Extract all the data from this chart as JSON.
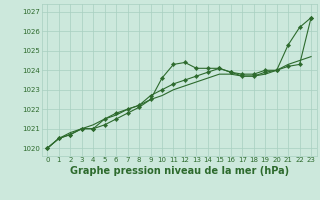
{
  "xlabel": "Graphe pression niveau de la mer (hPa)",
  "x": [
    0,
    1,
    2,
    3,
    4,
    5,
    6,
    7,
    8,
    9,
    10,
    11,
    12,
    13,
    14,
    15,
    16,
    17,
    18,
    19,
    20,
    21,
    22,
    23
  ],
  "line1": [
    1020.0,
    1020.5,
    1020.7,
    1021.0,
    1021.0,
    1021.2,
    1021.5,
    1021.8,
    1022.1,
    1022.5,
    1023.6,
    1024.3,
    1024.4,
    1024.1,
    1024.1,
    1024.1,
    1023.9,
    1023.8,
    1023.8,
    1024.0,
    1024.0,
    1025.3,
    1026.2,
    1026.7
  ],
  "line2": [
    1020.0,
    1020.5,
    1020.7,
    1021.0,
    1021.0,
    1021.5,
    1021.8,
    1022.0,
    1022.2,
    1022.7,
    1023.0,
    1023.3,
    1023.5,
    1023.7,
    1023.9,
    1024.1,
    1023.9,
    1023.7,
    1023.7,
    1023.9,
    1024.0,
    1024.2,
    1024.3,
    1026.7
  ],
  "line3": [
    1020.0,
    1020.5,
    1020.8,
    1021.0,
    1021.2,
    1021.5,
    1021.7,
    1022.0,
    1022.2,
    1022.5,
    1022.7,
    1023.0,
    1023.2,
    1023.4,
    1023.6,
    1023.8,
    1023.8,
    1023.7,
    1023.7,
    1023.8,
    1024.0,
    1024.3,
    1024.5,
    1024.7
  ],
  "line_color": "#2d6a2d",
  "marker": "D",
  "marker_size": 2.2,
  "bg_color": "#cce8dc",
  "grid_color": "#a8cfc0",
  "ylim": [
    1019.6,
    1027.4
  ],
  "yticks": [
    1020,
    1021,
    1022,
    1023,
    1024,
    1025,
    1026,
    1027
  ],
  "xticks": [
    0,
    1,
    2,
    3,
    4,
    5,
    6,
    7,
    8,
    9,
    10,
    11,
    12,
    13,
    14,
    15,
    16,
    17,
    18,
    19,
    20,
    21,
    22,
    23
  ],
  "xlabel_color": "#2d6a2d",
  "tick_color": "#2d6a2d",
  "xlabel_fontsize": 7.0,
  "xlabel_fontweight": "bold",
  "tick_fontsize": 5.0
}
